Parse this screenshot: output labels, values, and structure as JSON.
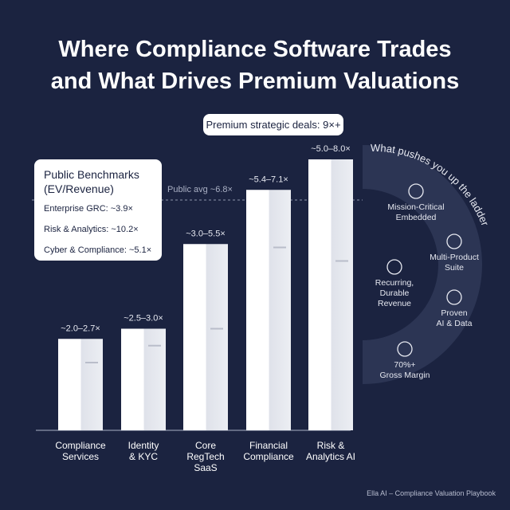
{
  "chart_data": {
    "type": "bar",
    "title": "Where Compliance Software Trades\nand What Drives Premium Valuations",
    "categories": [
      "Compliance\nServices",
      "Identity\n& KYC",
      "Core\nRegTech\nSaaS",
      "Financial\nCompliance",
      "Risk &\nAnalytics AI"
    ],
    "low": [
      2.0,
      2.5,
      3.0,
      5.4,
      5.0
    ],
    "values": [
      2.7,
      3.0,
      5.5,
      7.1,
      8.0
    ],
    "value_labels": [
      "~2.0–2.7×",
      "~2.5–3.0×",
      "~3.0–5.5×",
      "~5.4–7.1×",
      "~5.0–8.0×"
    ],
    "color": "#f4f5f9",
    "average": {
      "value": 6.8,
      "label": "Public avg ~6.8×"
    },
    "callout": "Premium strategic deals: 9×+"
  },
  "benchmarks": {
    "title": "Public Benchmarks\n(EV/Revenue)",
    "items": [
      "Enterprise GRC: ~3.9×",
      "Risk & Analytics: ~10.2×",
      "Cyber & Compliance: ~5.1×"
    ]
  },
  "drivers": {
    "title": "What pushes you up the ladder",
    "items": [
      "Mission-Critical\nEmbedded",
      "Multi-Product\nSuite",
      "Recurring,\nDurable\nRevenue",
      "Proven\nAI & Data",
      "70%+\nGross Margin"
    ]
  },
  "footer": "Ella AI – Compliance Valuation Playbook"
}
